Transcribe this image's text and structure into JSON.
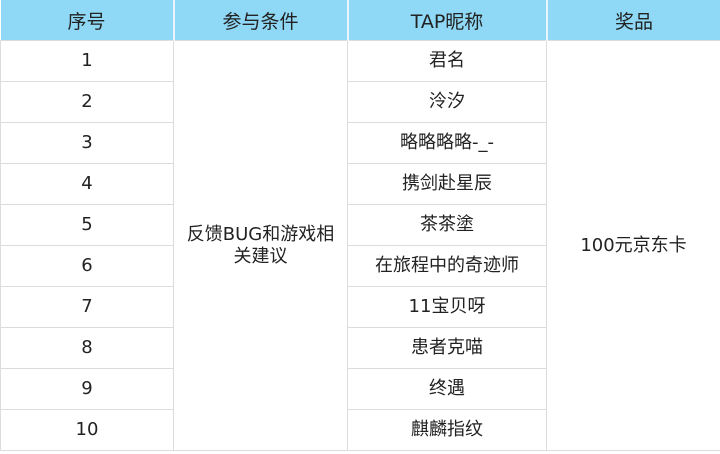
{
  "header": {
    "index": "序号",
    "condition": "参与条件",
    "nickname": "TAP昵称",
    "prize": "奖品"
  },
  "condition": "反馈BUG和游戏相关建议",
  "prize": "100元京东卡",
  "rows": [
    {
      "index": "1",
      "nickname": "君名"
    },
    {
      "index": "2",
      "nickname": "泠汐"
    },
    {
      "index": "3",
      "nickname": "略略略略-_-"
    },
    {
      "index": "4",
      "nickname": "携剑赴星辰"
    },
    {
      "index": "5",
      "nickname": "茶茶塗"
    },
    {
      "index": "6",
      "nickname": "在旅程中的奇迹师"
    },
    {
      "index": "7",
      "nickname": "11宝贝呀"
    },
    {
      "index": "8",
      "nickname": "患者克喵"
    },
    {
      "index": "9",
      "nickname": "终遇"
    },
    {
      "index": "10",
      "nickname": "麒麟指纹"
    }
  ],
  "colors": {
    "header_bg": "#8fd9f6",
    "border": "#dcdcdc"
  }
}
